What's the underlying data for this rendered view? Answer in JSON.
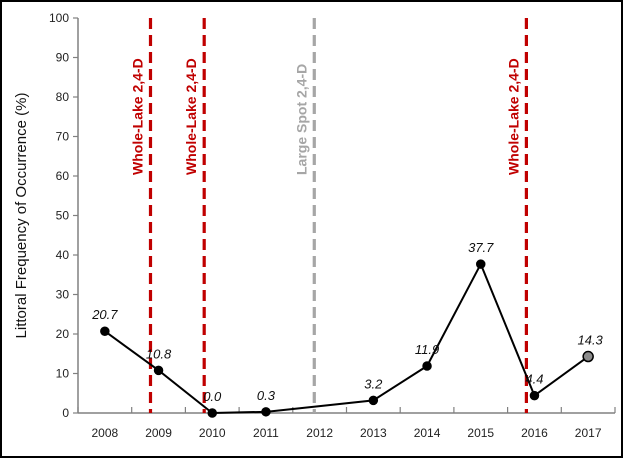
{
  "chart_data": {
    "type": "line",
    "title": "",
    "ylabel": "Littoral Frequency of Occurrence (%)",
    "xlabel": "",
    "ylim": [
      0,
      100
    ],
    "yticks": [
      0,
      10,
      20,
      30,
      40,
      50,
      60,
      70,
      80,
      90,
      100
    ],
    "xlim": [
      2007.5,
      2017.5
    ],
    "categories": [
      "2008",
      "2009",
      "2010",
      "2011",
      "2012",
      "2013",
      "2014",
      "2015",
      "2016",
      "2017"
    ],
    "grid": false,
    "series": [
      {
        "x": [
          2008.0,
          2009.0,
          2010.0,
          2011.0,
          2013.0,
          2014.0,
          2015.0,
          2016.0,
          2017.0
        ],
        "values": [
          20.7,
          10.8,
          0.0,
          0.3,
          3.2,
          11.9,
          37.7,
          4.4,
          14.3
        ],
        "labels": [
          "20.7",
          "10.8",
          "0.0",
          "0.3",
          "3.2",
          "11.9",
          "37.7",
          "4.4",
          "14.3"
        ],
        "color": "#000000"
      }
    ],
    "treatments": [
      {
        "x": 2008.85,
        "label": "Whole-Lake 2,4-D",
        "color": "#c00000"
      },
      {
        "x": 2009.85,
        "label": "Whole-Lake 2,4-D",
        "color": "#c00000"
      },
      {
        "x": 2011.9,
        "label": "Large Spot 2,4-D",
        "color": "#a6a6a6"
      },
      {
        "x": 2015.85,
        "label": "Whole-Lake 2,4-D",
        "color": "#c00000"
      }
    ]
  }
}
